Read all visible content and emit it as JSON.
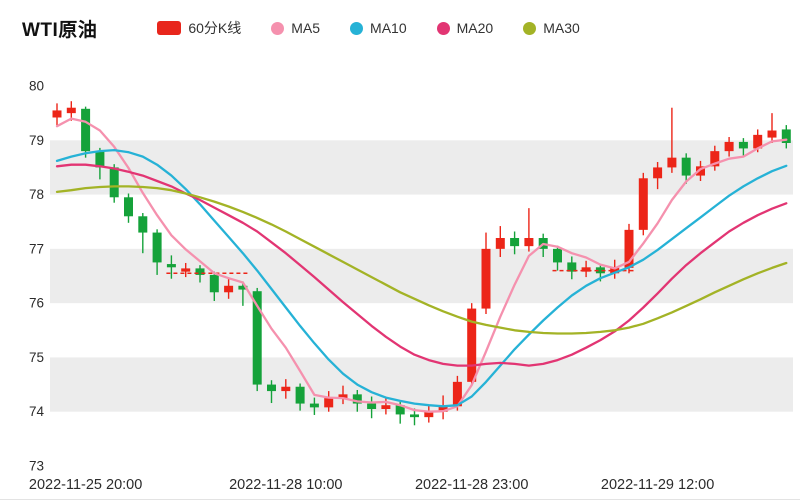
{
  "header": {
    "title": "WTI原油"
  },
  "legend": {
    "items": [
      {
        "label": "60分K线",
        "color": "#e8261c",
        "marker": "rect",
        "slug": "kline-60min"
      },
      {
        "label": "MA5",
        "color": "#f591ae",
        "marker": "circle",
        "slug": "ma5"
      },
      {
        "label": "MA10",
        "color": "#26b2d6",
        "marker": "circle",
        "slug": "ma10"
      },
      {
        "label": "MA20",
        "color": "#e23573",
        "marker": "circle",
        "slug": "ma20"
      },
      {
        "label": "MA30",
        "color": "#a3b326",
        "marker": "circle",
        "slug": "ma30"
      }
    ]
  },
  "chart_data": {
    "type": "candlestick",
    "title": "WTI原油 60分K线",
    "interval_label": "60分K线",
    "ylim": [
      73,
      80
    ],
    "y_ticks": [
      73,
      74,
      75,
      76,
      77,
      78,
      79,
      80
    ],
    "x_ticks": [
      {
        "label": "2022-11-25 20:00",
        "index": 2
      },
      {
        "label": "2022-11-28 10:00",
        "index": 16
      },
      {
        "label": "2022-11-28 23:00",
        "index": 29
      },
      {
        "label": "2022-11-29 12:00",
        "index": 42
      }
    ],
    "band_fill_ranges": [
      [
        74,
        75
      ],
      [
        76,
        77
      ],
      [
        78,
        79
      ]
    ],
    "colors": {
      "up": "#ec2518",
      "down": "#15a23a",
      "band": "#ececec",
      "axis_text": "#2b2b2b",
      "divider": "#e3e3e3"
    },
    "candles": [
      [
        79.42,
        79.55,
        79.28,
        79.68
      ],
      [
        79.5,
        79.6,
        79.36,
        79.72
      ],
      [
        79.58,
        78.8,
        78.68,
        79.62
      ],
      [
        78.8,
        78.5,
        78.28,
        78.86
      ],
      [
        78.5,
        77.95,
        77.85,
        78.56
      ],
      [
        77.95,
        77.6,
        77.48,
        78.02
      ],
      [
        77.6,
        77.3,
        76.92,
        77.66
      ],
      [
        77.3,
        76.75,
        76.52,
        77.36
      ],
      [
        76.72,
        76.66,
        76.45,
        76.88
      ],
      [
        76.58,
        76.64,
        76.48,
        76.74
      ],
      [
        76.64,
        76.52,
        76.38,
        76.7
      ],
      [
        76.52,
        76.2,
        76.04,
        76.58
      ],
      [
        76.2,
        76.32,
        76.08,
        76.46
      ],
      [
        76.32,
        76.25,
        75.95,
        76.4
      ],
      [
        76.22,
        74.5,
        74.38,
        76.28
      ],
      [
        74.5,
        74.38,
        74.16,
        74.58
      ],
      [
        74.38,
        74.46,
        74.24,
        74.6
      ],
      [
        74.46,
        74.15,
        74.02,
        74.52
      ],
      [
        74.15,
        74.08,
        73.94,
        74.26
      ],
      [
        74.08,
        74.25,
        74.0,
        74.38
      ],
      [
        74.25,
        74.32,
        74.14,
        74.48
      ],
      [
        74.32,
        74.15,
        74.0,
        74.4
      ],
      [
        74.15,
        74.05,
        73.88,
        74.28
      ],
      [
        74.05,
        74.12,
        73.95,
        74.26
      ],
      [
        74.12,
        73.95,
        73.78,
        74.18
      ],
      [
        73.95,
        73.9,
        73.75,
        74.06
      ],
      [
        73.9,
        74.0,
        73.8,
        74.12
      ],
      [
        74.0,
        74.1,
        73.86,
        74.3
      ],
      [
        74.1,
        74.55,
        74.02,
        74.66
      ],
      [
        74.55,
        75.9,
        74.48,
        76.0
      ],
      [
        75.9,
        77.0,
        75.8,
        77.3
      ],
      [
        77.0,
        77.2,
        76.85,
        77.42
      ],
      [
        77.2,
        77.05,
        76.9,
        77.32
      ],
      [
        77.05,
        77.2,
        76.95,
        77.75
      ],
      [
        77.2,
        77.0,
        76.85,
        77.28
      ],
      [
        77.0,
        76.75,
        76.6,
        77.06
      ],
      [
        76.75,
        76.58,
        76.44,
        76.86
      ],
      [
        76.58,
        76.66,
        76.48,
        76.78
      ],
      [
        76.66,
        76.55,
        76.4,
        76.72
      ],
      [
        76.55,
        76.65,
        76.45,
        76.8
      ],
      [
        76.65,
        77.35,
        76.55,
        77.46
      ],
      [
        77.35,
        78.3,
        77.25,
        78.4
      ],
      [
        78.3,
        78.5,
        78.1,
        78.6
      ],
      [
        78.5,
        78.68,
        78.4,
        79.6
      ],
      [
        78.68,
        78.35,
        78.2,
        78.76
      ],
      [
        78.35,
        78.52,
        78.25,
        78.62
      ],
      [
        78.52,
        78.8,
        78.44,
        78.9
      ],
      [
        78.8,
        78.97,
        78.7,
        79.06
      ],
      [
        78.97,
        78.85,
        78.72,
        79.04
      ],
      [
        78.85,
        79.1,
        78.78,
        79.2
      ],
      [
        79.05,
        79.18,
        78.95,
        79.5
      ],
      [
        79.2,
        78.95,
        78.85,
        79.28
      ]
    ],
    "series": [
      {
        "name": "MA5",
        "color": "#f591ae",
        "values": [
          79.26,
          79.4,
          79.34,
          79.18,
          78.88,
          78.49,
          78.03,
          77.62,
          77.25,
          76.99,
          76.77,
          76.55,
          76.46,
          76.38,
          75.95,
          75.53,
          75.18,
          74.75,
          74.31,
          74.26,
          74.25,
          74.19,
          74.17,
          74.18,
          74.12,
          74.03,
          74.0,
          74.01,
          74.1,
          74.49,
          75.11,
          75.75,
          76.34,
          76.87,
          77.09,
          77.04,
          76.92,
          76.84,
          76.71,
          76.64,
          76.76,
          77.1,
          77.47,
          77.9,
          78.24,
          78.47,
          78.57,
          78.66,
          78.7,
          78.85,
          78.98,
          79.01
        ]
      },
      {
        "name": "MA10",
        "color": "#26b2d6",
        "values": [
          78.62,
          78.7,
          78.76,
          78.8,
          78.82,
          78.78,
          78.7,
          78.55,
          78.35,
          78.1,
          77.82,
          77.52,
          77.22,
          76.92,
          76.6,
          76.26,
          75.92,
          75.58,
          75.26,
          74.96,
          74.7,
          74.5,
          74.36,
          74.26,
          74.2,
          74.15,
          74.12,
          74.1,
          74.12,
          74.28,
          74.55,
          74.85,
          75.15,
          75.42,
          75.68,
          75.92,
          76.14,
          76.32,
          76.46,
          76.56,
          76.66,
          76.8,
          76.98,
          77.18,
          77.38,
          77.58,
          77.78,
          77.98,
          78.15,
          78.3,
          78.43,
          78.53
        ]
      },
      {
        "name": "MA20",
        "color": "#e23573",
        "values": [
          78.52,
          78.55,
          78.55,
          78.52,
          78.48,
          78.42,
          78.35,
          78.25,
          78.15,
          78.02,
          77.9,
          77.76,
          77.62,
          77.48,
          77.32,
          77.12,
          76.92,
          76.7,
          76.48,
          76.25,
          76.02,
          75.8,
          75.58,
          75.38,
          75.2,
          75.05,
          74.95,
          74.88,
          74.85,
          74.85,
          74.88,
          74.9,
          74.88,
          74.85,
          74.88,
          74.95,
          75.05,
          75.18,
          75.32,
          75.48,
          75.68,
          75.92,
          76.18,
          76.45,
          76.7,
          76.92,
          77.12,
          77.32,
          77.48,
          77.62,
          77.74,
          77.84
        ]
      },
      {
        "name": "MA30",
        "color": "#a3b326",
        "values": [
          78.05,
          78.08,
          78.12,
          78.14,
          78.15,
          78.15,
          78.14,
          78.12,
          78.08,
          78.02,
          77.95,
          77.87,
          77.78,
          77.68,
          77.57,
          77.45,
          77.32,
          77.18,
          77.04,
          76.9,
          76.76,
          76.62,
          76.48,
          76.34,
          76.2,
          76.08,
          75.96,
          75.85,
          75.75,
          75.66,
          75.6,
          75.55,
          75.5,
          75.47,
          75.45,
          75.44,
          75.44,
          75.45,
          75.47,
          75.5,
          75.55,
          75.62,
          75.72,
          75.83,
          75.95,
          76.07,
          76.2,
          76.32,
          76.44,
          76.55,
          76.65,
          76.74
        ]
      }
    ],
    "dashed_segments": [
      {
        "from": 8,
        "to": 13,
        "value": 76.55,
        "color": "#ec2518"
      },
      {
        "from": 35,
        "to": 40,
        "value": 76.6,
        "color": "#ec2518"
      }
    ]
  }
}
